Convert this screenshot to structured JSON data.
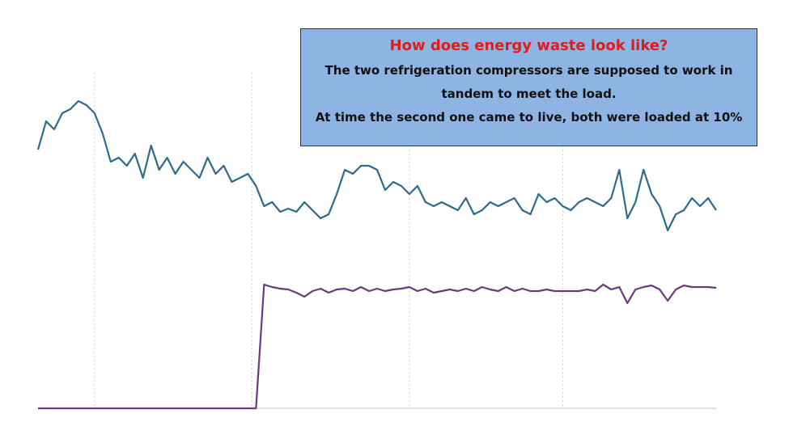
{
  "chart_data": {
    "type": "line",
    "annotation": {
      "title": "How does energy waste look like?",
      "lines": [
        "The two refrigeration compressors are supposed to work in",
        "tandem to meet the load.",
        "At time the second one came to live, both were loaded at 10%"
      ]
    },
    "x": [
      0,
      1,
      2,
      3,
      4,
      5,
      6,
      7,
      8,
      9,
      10,
      11,
      12,
      13,
      14,
      15,
      16,
      17,
      18,
      19,
      20,
      21,
      22,
      23,
      24,
      25,
      26,
      27,
      28,
      29,
      30,
      31,
      32,
      33,
      34,
      35,
      36,
      37,
      38,
      39,
      40,
      41,
      42,
      43,
      44,
      45,
      46,
      47,
      48,
      49,
      50,
      51,
      52,
      53,
      54,
      55,
      56,
      57,
      58,
      59,
      60,
      61,
      62,
      63,
      64,
      65,
      66,
      67,
      68,
      69,
      70,
      71,
      72,
      73,
      74,
      75,
      76,
      77,
      78,
      79,
      80,
      81,
      82,
      83,
      84
    ],
    "series": [
      {
        "color": "#2e6a8e",
        "values": [
          320,
          355,
          345,
          365,
          370,
          380,
          375,
          365,
          340,
          305,
          310,
          300,
          315,
          285,
          325,
          295,
          310,
          290,
          305,
          295,
          285,
          310,
          290,
          300,
          280,
          285,
          290,
          275,
          250,
          255,
          243,
          247,
          243,
          255,
          245,
          235,
          240,
          265,
          295,
          290,
          300,
          300,
          295,
          270,
          280,
          275,
          265,
          275,
          255,
          250,
          255,
          250,
          245,
          260,
          240,
          245,
          255,
          250,
          255,
          260,
          245,
          240,
          265,
          255,
          260,
          250,
          245,
          255,
          260,
          255,
          250,
          260,
          295,
          235,
          255,
          295,
          265,
          250,
          220,
          240,
          245,
          260,
          250,
          260,
          245
        ]
      },
      {
        "color": "#6b3a7d",
        "values": [
          0,
          0,
          0,
          0,
          0,
          0,
          0,
          0,
          0,
          0,
          0,
          0,
          0,
          0,
          0,
          0,
          0,
          0,
          0,
          0,
          0,
          0,
          0,
          0,
          0,
          0,
          0,
          0,
          153,
          150,
          148,
          147,
          143,
          138,
          145,
          148,
          143,
          147,
          148,
          145,
          150,
          145,
          148,
          145,
          147,
          148,
          150,
          145,
          148,
          143,
          145,
          147,
          145,
          148,
          145,
          150,
          147,
          145,
          150,
          145,
          148,
          145,
          145,
          147,
          145,
          145,
          145,
          145,
          147,
          145,
          153,
          147,
          150,
          130,
          147,
          150,
          152,
          147,
          133,
          147,
          152,
          150,
          150,
          150,
          149
        ]
      }
    ],
    "xlim": [
      0,
      84
    ],
    "ylim": [
      0,
      400
    ],
    "xticks": [
      7,
      26.5,
      46,
      65
    ],
    "grid": true
  }
}
